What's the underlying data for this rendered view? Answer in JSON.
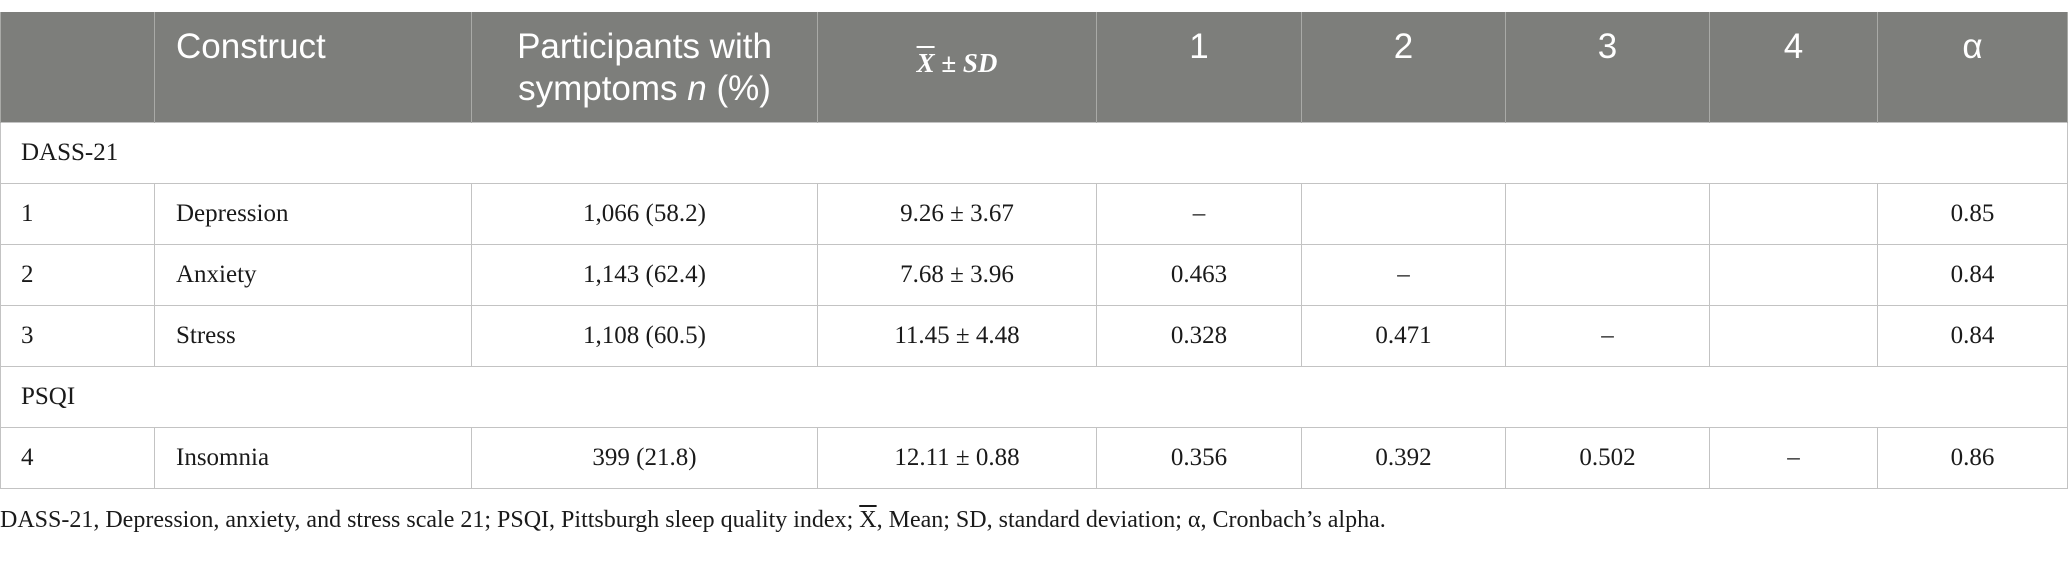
{
  "header": {
    "blank": "",
    "construct": "Construct",
    "participants_line1": "Participants with",
    "participants_line2_text": "symptoms ",
    "participants_n": "n",
    "participants_pct": " (%)",
    "mean_x": "X",
    "mean_pm": " ± ",
    "mean_sd": "SD",
    "c1": "1",
    "c2": "2",
    "c3": "3",
    "c4": "4",
    "alpha": "α"
  },
  "sections": [
    {
      "title": "DASS-21",
      "rows": [
        {
          "num": "1",
          "construct": "Depression",
          "participants": "1,066 (58.2)",
          "mean_sd": "9.26 ± 3.67",
          "c1": "–",
          "c2": "",
          "c3": "",
          "c4": "",
          "alpha": "0.85"
        },
        {
          "num": "2",
          "construct": "Anxiety",
          "participants": "1,143 (62.4)",
          "mean_sd": "7.68 ± 3.96",
          "c1": "0.463",
          "c2": "–",
          "c3": "",
          "c4": "",
          "alpha": "0.84"
        },
        {
          "num": "3",
          "construct": "Stress",
          "participants": "1,108 (60.5)",
          "mean_sd": "11.45 ± 4.48",
          "c1": "0.328",
          "c2": "0.471",
          "c3": "–",
          "c4": "",
          "alpha": "0.84"
        }
      ]
    },
    {
      "title": "PSQI",
      "rows": [
        {
          "num": "4",
          "construct": "Insomnia",
          "participants": "399 (21.8)",
          "mean_sd": "12.11 ± 0.88",
          "c1": "0.356",
          "c2": "0.392",
          "c3": "0.502",
          "c4": "–",
          "alpha": "0.86"
        }
      ]
    }
  ],
  "footnote": {
    "before_x": "DASS-21, Depression, anxiety, and stress scale 21; PSQI, Pittsburgh sleep quality index; ",
    "x": "X",
    "after_x": ", Mean; SD, standard deviation; α, Cronbach’s alpha."
  },
  "colors": {
    "header_bg": "#7d7e7b",
    "header_text": "#ffffff",
    "grid": "#c3c3c3"
  }
}
